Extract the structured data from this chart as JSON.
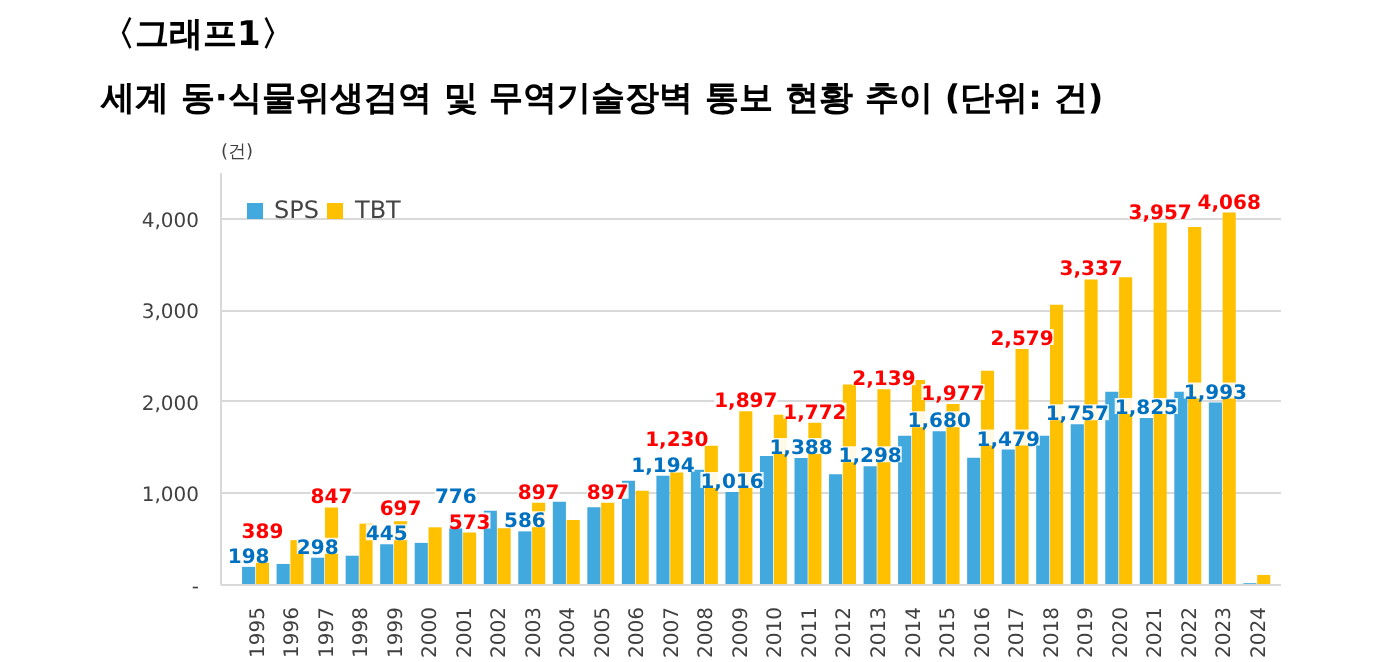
{
  "chart_data": {
    "type": "bar",
    "title": "〈그래프1〉",
    "subtitle": "세계 동·식물위생검역 및 무역기술장벽 통보 현황 추이 (단위: 건)",
    "ylabel": "(건)",
    "categories": [
      "1995",
      "1996",
      "1997",
      "1998",
      "1999",
      "2000",
      "2001",
      "2002",
      "2003",
      "2004",
      "2005",
      "2006",
      "2007",
      "2008",
      "2009",
      "2010",
      "2011",
      "2012",
      "2013",
      "2014",
      "2015",
      "2016",
      "2017",
      "2018",
      "2019",
      "2020",
      "2021",
      "2022",
      "2023",
      "2024"
    ],
    "series": [
      {
        "name": "SPS",
        "color": "#41a9de",
        "values": [
          198,
          230,
          298,
          320,
          445,
          460,
          776,
          810,
          586,
          910,
          850,
          1140,
          1194,
          1260,
          1016,
          1410,
          1388,
          1210,
          1298,
          1630,
          1680,
          1390,
          1479,
          1630,
          1757,
          2110,
          1825,
          2110,
          1993,
          20
        ],
        "value_labels": [
          "198",
          null,
          "298",
          null,
          "445",
          null,
          "776",
          null,
          "586",
          null,
          null,
          null,
          "1,194",
          null,
          "1,016",
          null,
          "1,388",
          null,
          "1,298",
          null,
          "1,680",
          null,
          "1,479",
          null,
          "1,757",
          null,
          "1,825",
          null,
          "1,993",
          null
        ]
      },
      {
        "name": "TBT",
        "color": "#ffc000",
        "values": [
          389,
          490,
          847,
          670,
          697,
          630,
          573,
          620,
          897,
          710,
          897,
          1030,
          1230,
          1520,
          1897,
          1860,
          1772,
          2190,
          2139,
          2240,
          1977,
          2340,
          2579,
          3060,
          3337,
          3360,
          3957,
          3910,
          4068,
          110
        ],
        "value_labels": [
          "389",
          null,
          "847",
          null,
          "697",
          null,
          "573",
          null,
          "897",
          null,
          "897",
          null,
          "1,230",
          null,
          "1,897",
          null,
          "1,772",
          null,
          "2,139",
          null,
          "1,977",
          null,
          "2,579",
          null,
          "3,337",
          null,
          "3,957",
          null,
          "4,068",
          null
        ]
      }
    ],
    "ylim": [
      0,
      4500
    ],
    "yticks": [
      {
        "value": 0,
        "label": "-"
      },
      {
        "value": 1000,
        "label": "1,000"
      },
      {
        "value": 2000,
        "label": "2,000"
      },
      {
        "value": 3000,
        "label": "3,000"
      },
      {
        "value": 4000,
        "label": "4,000"
      }
    ],
    "grid": "y",
    "legend": "top left"
  }
}
